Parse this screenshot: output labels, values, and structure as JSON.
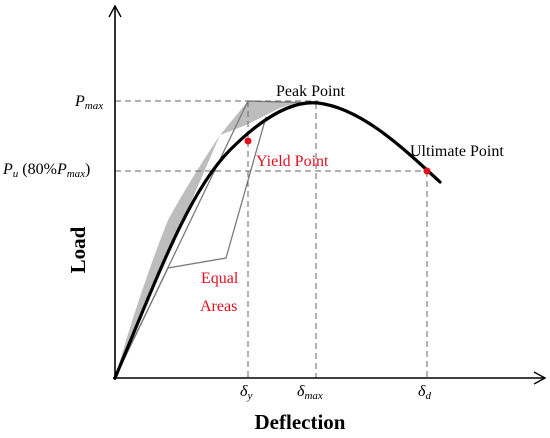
{
  "axes": {
    "x_title": "Deflection",
    "y_title": "Load"
  },
  "y_marks": {
    "p_max": {
      "base": "P",
      "sub": "max"
    },
    "p_u": {
      "base": "P",
      "sub": "u",
      "paren_open": " (80%",
      "inner_base": "P",
      "inner_sub": "max",
      "paren_close": ")"
    }
  },
  "x_marks": {
    "delta_y": {
      "base": "δ",
      "sub": "y"
    },
    "delta_max": {
      "base": "δ",
      "sub": "max"
    },
    "delta_d": {
      "base": "δ",
      "sub": "d"
    }
  },
  "annotations": {
    "peak_point": "Peak Point",
    "yield_point": "Yield Point",
    "ultimate_point": "Ultimate Point",
    "equal_areas_line1": "Equal",
    "equal_areas_line2": "Areas"
  },
  "colors": {
    "curve": "#000000",
    "guide": "#666666",
    "shade": "#bdbdbd",
    "point": "#e0101e",
    "annotation": "#e0101e"
  }
}
